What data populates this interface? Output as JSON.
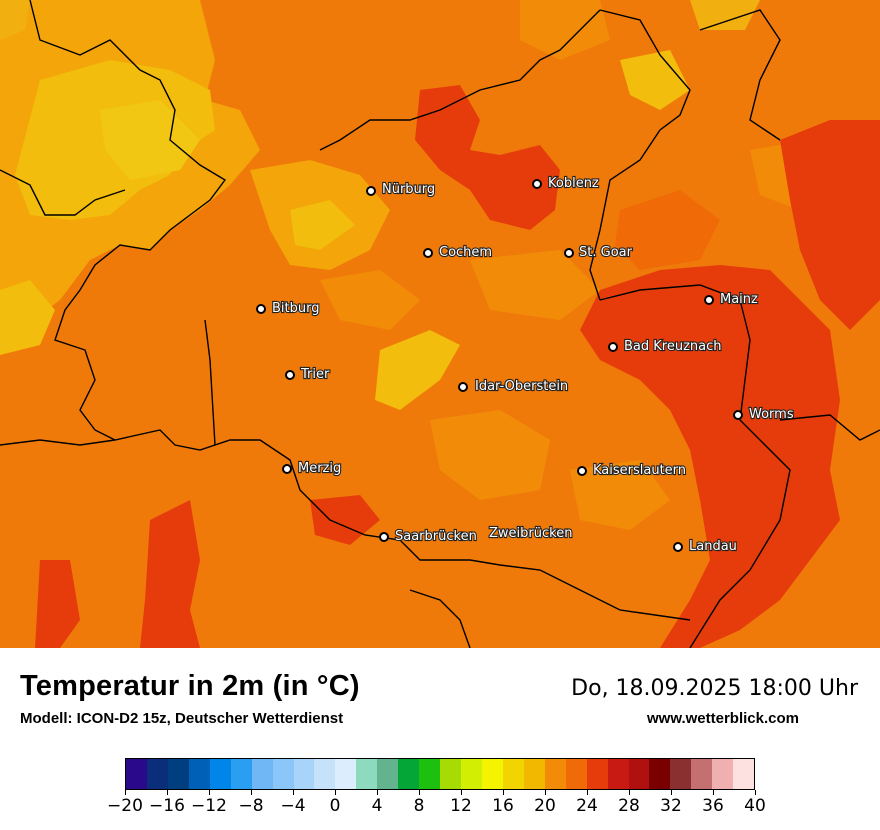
{
  "title": "Temperatur in 2m (in °C)",
  "subtitle": "Modell: ICON-D2 15z, Deutscher Wetterdienst",
  "datetime": "Do, 18.09.2025 18:00 Uhr",
  "website": "www.wetterblick.com",
  "cities": [
    {
      "name": "Nürburg"
    },
    {
      "name": "Koblenz"
    },
    {
      "name": "Cochem"
    },
    {
      "name": "St. Goar"
    },
    {
      "name": "Bitburg"
    },
    {
      "name": "Mainz"
    },
    {
      "name": "Bad Kreuznach"
    },
    {
      "name": "Trier"
    },
    {
      "name": "Idar-Oberstein"
    },
    {
      "name": "Worms"
    },
    {
      "name": "Merzig"
    },
    {
      "name": "Kaiserslautern"
    },
    {
      "name": "Saarbrücken"
    },
    {
      "name": "Zweibrücken"
    },
    {
      "name": "Landau"
    }
  ],
  "legend": {
    "colors": [
      "#2a0a8a",
      "#0a2e7a",
      "#003f7f",
      "#0060b8",
      "#0086e8",
      "#2a9ef0",
      "#6fb8f5",
      "#8ac6f7",
      "#a9d4f9",
      "#c6e2fb",
      "#dceefd",
      "#8ddabf",
      "#63b38f",
      "#04a638",
      "#1ec00f",
      "#a6dc03",
      "#d2ee02",
      "#f4f400",
      "#f2d500",
      "#f2b800",
      "#f28c08",
      "#f06a08",
      "#e63c0c",
      "#c81a12",
      "#b01010",
      "#7a0000",
      "#8b3030",
      "#c47070",
      "#f0b0b0",
      "#fde0e0"
    ],
    "ticks": [
      "−20",
      "−16",
      "−12",
      "−8",
      "−4",
      "0",
      "4",
      "8",
      "12",
      "16",
      "20",
      "24",
      "28",
      "32",
      "36",
      "40"
    ]
  }
}
